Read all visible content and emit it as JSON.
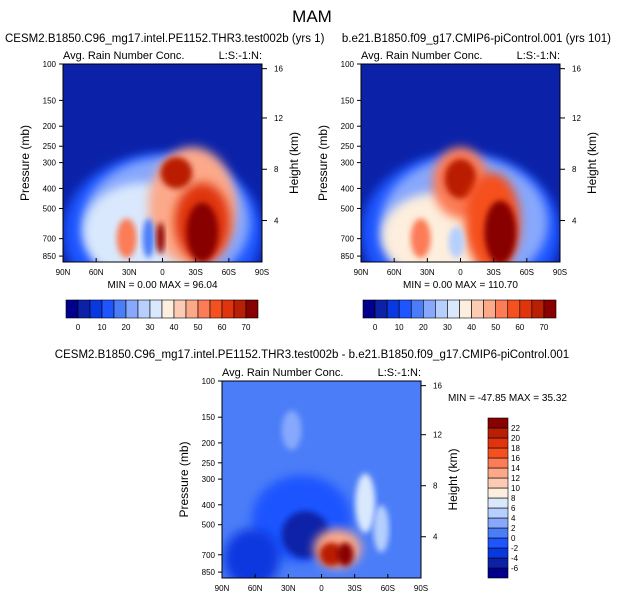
{
  "page_title": "MAM",
  "chart_data": [
    {
      "type": "heatmap",
      "panel": "top-left",
      "case_title": "CESM2.B1850.C96_mg17.intel.PE1152.THR3.test002b (yrs 1)",
      "subtitle": "Avg. Rain Number Conc.",
      "corner_label": "L:S:-1:N:",
      "ylabel": "Pressure (mb)",
      "ylabel_right": "Height (km)",
      "stats": "MIN =   0.00  MAX =  96.04",
      "field_max_region": "30S, 500-850 mb",
      "x_ticks": [
        "90N",
        "60N",
        "30N",
        "0",
        "30S",
        "60S",
        "90S"
      ],
      "y_ticks": [
        100,
        150,
        200,
        250,
        300,
        400,
        500,
        700,
        850
      ],
      "y_right_ticks": [
        16,
        12,
        8,
        4
      ],
      "ylim": [
        908,
        100
      ],
      "colorbar": {
        "levels": [
          0,
          5,
          10,
          15,
          20,
          25,
          30,
          35,
          40,
          45,
          50,
          55,
          60,
          65,
          70
        ],
        "labels": [
          "0",
          "10",
          "20",
          "30",
          "40",
          "50",
          "60",
          "70"
        ]
      }
    },
    {
      "type": "heatmap",
      "panel": "top-right",
      "case_title": "b.e21.B1850.f09_g17.CMIP6-piControl.001 (yrs 101)",
      "subtitle": "Avg. Rain Number Conc.",
      "corner_label": "L:S:-1:N:",
      "ylabel": "Pressure (mb)",
      "ylabel_right": "Height (km)",
      "stats": "MIN =   0.00  MAX = 110.70",
      "x_ticks": [
        "90N",
        "60N",
        "30N",
        "0",
        "30S",
        "60S",
        "90S"
      ],
      "y_ticks": [
        100,
        150,
        200,
        250,
        300,
        400,
        500,
        700,
        850
      ],
      "y_right_ticks": [
        16,
        12,
        8,
        4
      ],
      "ylim": [
        908,
        100
      ],
      "colorbar": {
        "levels": [
          0,
          5,
          10,
          15,
          20,
          25,
          30,
          35,
          40,
          45,
          50,
          55,
          60,
          65,
          70
        ],
        "labels": [
          "0",
          "10",
          "20",
          "30",
          "40",
          "50",
          "60",
          "70"
        ]
      }
    },
    {
      "type": "heatmap",
      "panel": "bottom",
      "case_title": "CESM2.B1850.C96_mg17.intel.PE1152.THR3.test002b - b.e21.B1850.f09_g17.CMIP6-piControl.001",
      "subtitle": "Avg. Rain Number Conc.",
      "corner_label": "L:S:-1:N:",
      "ylabel": "Pressure (mb)",
      "ylabel_right": "Height (km)",
      "stats": "MIN = -47.85  MAX =  35.32",
      "x_ticks": [
        "90N",
        "60N",
        "30N",
        "0",
        "30S",
        "60S",
        "90S"
      ],
      "y_ticks": [
        100,
        150,
        200,
        250,
        300,
        400,
        500,
        700,
        850
      ],
      "y_right_ticks": [
        16,
        12,
        8,
        4
      ],
      "ylim": [
        908,
        100
      ],
      "colorbar": {
        "levels": [
          -6,
          -4,
          -2,
          0,
          2,
          4,
          6,
          8,
          10,
          12,
          14,
          16,
          18,
          20,
          22
        ],
        "labels": [
          "-6",
          "-4",
          "-2",
          "0",
          "2",
          "4",
          "6",
          "8",
          "10",
          "12",
          "14",
          "16",
          "18",
          "20",
          "22"
        ]
      }
    }
  ],
  "colors": [
    "#00008c",
    "#0b22a8",
    "#0838e0",
    "#1f55ff",
    "#4b7df8",
    "#87a8fc",
    "#b6cffd",
    "#d9e8fd",
    "#fdeedd",
    "#fdcbb3",
    "#fca98a",
    "#fb7c57",
    "#f5501f",
    "#e0340c",
    "#b91f05",
    "#880000"
  ]
}
